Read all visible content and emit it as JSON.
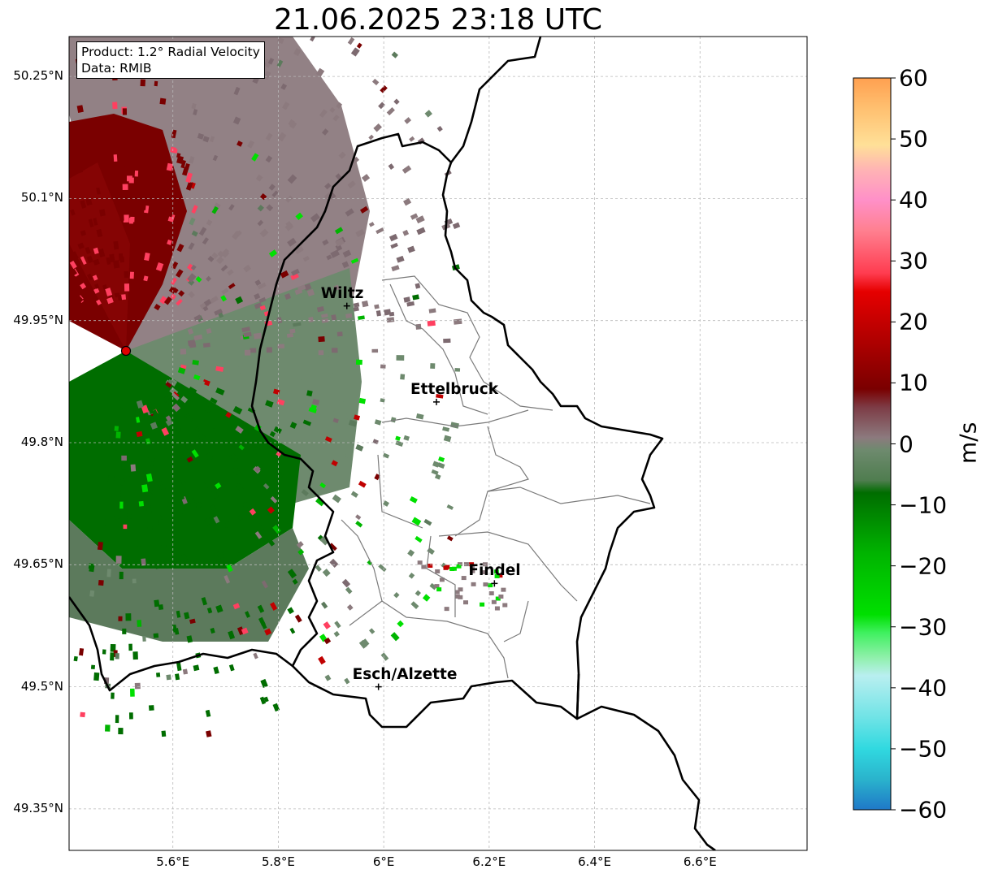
{
  "title": "21.06.2025 23:18 UTC",
  "info": {
    "product": "Product: 1.2° Radial Velocity",
    "source": "Data: RMIB"
  },
  "map": {
    "type": "radar radial velocity map",
    "lon_range": [
      5.4,
      6.8
    ],
    "lat_range": [
      49.3,
      50.3
    ],
    "lat_ticks": [
      {
        "value": 50.25,
        "label": "50.25°N"
      },
      {
        "value": 50.1,
        "label": "50.1°N"
      },
      {
        "value": 49.95,
        "label": "49.95°N"
      },
      {
        "value": 49.8,
        "label": "49.8°N"
      },
      {
        "value": 49.65,
        "label": "49.65°N"
      },
      {
        "value": 49.5,
        "label": "49.5°N"
      },
      {
        "value": 49.35,
        "label": "49.35°N"
      }
    ],
    "lon_ticks": [
      {
        "value": 5.6,
        "label": "5.6°E"
      },
      {
        "value": 5.8,
        "label": "5.8°E"
      },
      {
        "value": 6.0,
        "label": "6°E"
      },
      {
        "value": 6.2,
        "label": "6.2°E"
      },
      {
        "value": 6.4,
        "label": "6.4°E"
      },
      {
        "value": 6.6,
        "label": "6.6°E"
      }
    ],
    "radar_site": {
      "lon": 5.505,
      "lat": 49.915
    },
    "cities": [
      {
        "name": "Wiltz",
        "lon": 5.93,
        "lat": 49.968
      },
      {
        "name": "Ettelbruck",
        "lon": 6.1,
        "lat": 49.85
      },
      {
        "name": "Findel",
        "lon": 6.21,
        "lat": 49.627
      },
      {
        "name": "Esch/Alzette",
        "lon": 5.99,
        "lat": 49.5
      }
    ]
  },
  "colorbar": {
    "unit": "m/s",
    "range": [
      -60,
      60
    ],
    "ticks": [
      "60",
      "50",
      "40",
      "30",
      "20",
      "10",
      "0",
      "−10",
      "−20",
      "−30",
      "−40",
      "−50",
      "−60"
    ],
    "stops": [
      {
        "v": -60,
        "c": "#1f78c8"
      },
      {
        "v": -55,
        "c": "#2ab3cc"
      },
      {
        "v": -50,
        "c": "#30d9e0"
      },
      {
        "v": -45,
        "c": "#6ee3e6"
      },
      {
        "v": -38,
        "c": "#b9eff0"
      },
      {
        "v": -35,
        "c": "#8ff0aa"
      },
      {
        "v": -31,
        "c": "#40f060"
      },
      {
        "v": -28,
        "c": "#00e000"
      },
      {
        "v": -18,
        "c": "#00b400"
      },
      {
        "v": -8,
        "c": "#006d00"
      },
      {
        "v": -6,
        "c": "#4f7d4f"
      },
      {
        "v": -1,
        "c": "#6e8a6e"
      },
      {
        "v": 1,
        "c": "#8c7a7e"
      },
      {
        "v": 6,
        "c": "#7d3c46"
      },
      {
        "v": 9,
        "c": "#7a0000"
      },
      {
        "v": 25,
        "c": "#e60000"
      },
      {
        "v": 28,
        "c": "#ff3c50"
      },
      {
        "v": 35,
        "c": "#ff8090"
      },
      {
        "v": 40,
        "c": "#ff90c8"
      },
      {
        "v": 45,
        "c": "#ffb4b4"
      },
      {
        "v": 49,
        "c": "#ffe098"
      },
      {
        "v": 55,
        "c": "#ffc070"
      },
      {
        "v": 60,
        "c": "#ffa050"
      }
    ]
  }
}
